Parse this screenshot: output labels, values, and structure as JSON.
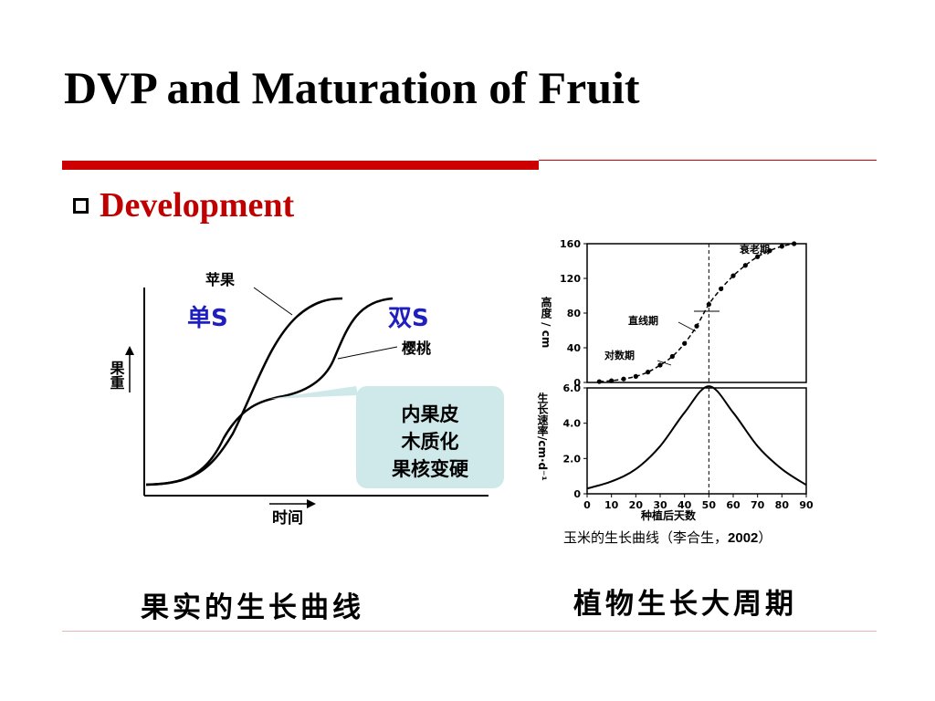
{
  "slide": {
    "title": "DVP and Maturation of Fruit",
    "bullet": "Development",
    "caption_left": "果实的生长曲线",
    "caption_right": "植物生长大周期",
    "source_note_text": "玉米的生长曲线（李合生，",
    "source_note_year": "2002",
    "source_note_close": "）",
    "accent_color": "#cc0000",
    "blue_label_color": "#1f1fbf"
  },
  "chart_data": [
    {
      "type": "line",
      "ylabel": "果重",
      "xlabel": "时间",
      "series": [
        {
          "name": "苹果",
          "curve": "single-sigmoid",
          "label_tag": "单S"
        },
        {
          "name": "樱桃",
          "curve": "double-sigmoid",
          "label_tag": "双S"
        }
      ],
      "annotation": {
        "lines": [
          "内果皮",
          "木质化",
          "果核变硬"
        ]
      }
    },
    {
      "type": "line",
      "ylabel": "高度 / cm",
      "xlim": [
        0,
        90
      ],
      "ylim": [
        0,
        160
      ],
      "yticks": [
        0,
        40,
        80,
        120,
        160
      ],
      "series": [
        {
          "name": "高度",
          "x": [
            5,
            10,
            15,
            20,
            25,
            30,
            35,
            40,
            45,
            50,
            55,
            60,
            65,
            70,
            75,
            80,
            85
          ],
          "y": [
            1,
            2,
            4,
            7,
            12,
            20,
            30,
            45,
            65,
            90,
            108,
            123,
            135,
            145,
            152,
            157,
            160
          ]
        }
      ],
      "phase_labels": [
        "对数期",
        "直线期",
        "衰老期"
      ],
      "vline_x": 50
    },
    {
      "type": "line",
      "ylabel": "生长速率/cm·d⁻¹",
      "xlabel": "种植后天数",
      "xlim": [
        0,
        90
      ],
      "ylim": [
        0,
        6.0
      ],
      "xticks": [
        0,
        10,
        20,
        30,
        40,
        50,
        60,
        70,
        80,
        90
      ],
      "yticks": [
        0,
        2.0,
        4.0,
        6.0
      ],
      "series": [
        {
          "name": "生长速率",
          "x": [
            0,
            10,
            20,
            30,
            40,
            50,
            60,
            70,
            80,
            90
          ],
          "y": [
            0.3,
            0.7,
            1.4,
            2.7,
            4.6,
            6.1,
            4.6,
            2.7,
            1.4,
            0.5
          ]
        }
      ],
      "vline_x": 50
    }
  ]
}
